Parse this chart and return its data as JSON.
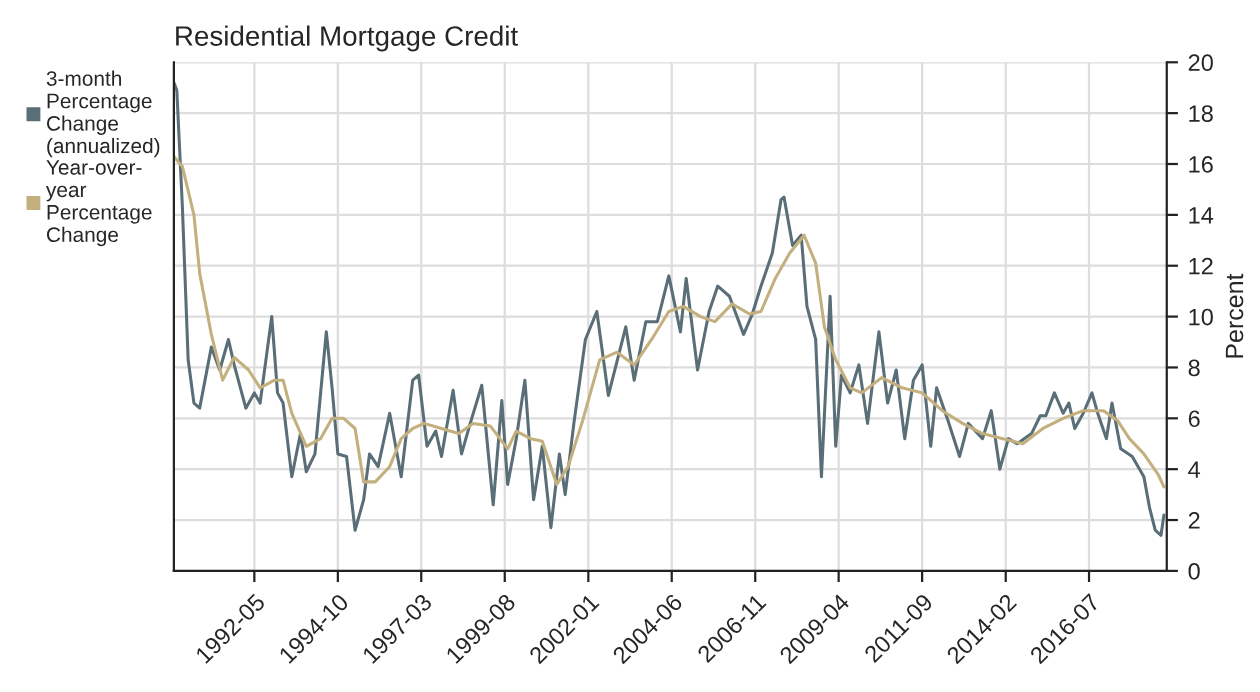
{
  "chart_data": {
    "type": "line",
    "title": "Residential Mortgage Credit",
    "ylabel": "Percent",
    "xlim": [
      "1990-01",
      "2018-10"
    ],
    "xticks": [
      "1992-05",
      "1994-10",
      "1997-03",
      "1999-08",
      "2002-01",
      "2004-06",
      "2006-11",
      "2009-04",
      "2011-09",
      "2014-02",
      "2016-07"
    ],
    "ylim": [
      0,
      20
    ],
    "yticks": [
      0,
      2,
      4,
      6,
      8,
      10,
      12,
      14,
      16,
      18,
      20
    ],
    "grid": true,
    "legend": "left",
    "line_style": "solid",
    "series": [
      {
        "name": "3-month\nPercentage\nChange\n(annualized)",
        "color": "#5a6e78",
        "x": [
          "1990-01",
          "1990-02",
          "1990-04",
          "1990-06",
          "1990-08",
          "1990-10",
          "1991-02",
          "1991-05",
          "1991-08",
          "1991-10",
          "1992-02",
          "1992-05",
          "1992-07",
          "1992-11",
          "1993-01",
          "1993-03",
          "1993-06",
          "1993-09",
          "1993-11",
          "1994-02",
          "1994-06",
          "1994-08",
          "1994-10",
          "1995-01",
          "1995-04",
          "1995-07",
          "1995-09",
          "1995-12",
          "1996-04",
          "1996-08",
          "1996-12",
          "1997-02",
          "1997-05",
          "1997-08",
          "1997-10",
          "1998-02",
          "1998-05",
          "1998-08",
          "1998-12",
          "1999-04",
          "1999-07",
          "1999-09",
          "1999-12",
          "2000-03",
          "2000-06",
          "2000-09",
          "2000-12",
          "2001-03",
          "2001-05",
          "2001-08",
          "2001-12",
          "2002-04",
          "2002-08",
          "2003-02",
          "2003-05",
          "2003-09",
          "2004-01",
          "2004-05",
          "2004-09",
          "2004-11",
          "2005-03",
          "2005-07",
          "2005-10",
          "2006-02",
          "2006-07",
          "2006-10",
          "2007-01",
          "2007-05",
          "2007-08",
          "2007-09",
          "2007-12",
          "2008-03",
          "2008-05",
          "2008-08",
          "2008-10",
          "2009-01",
          "2009-03",
          "2009-05",
          "2009-08",
          "2009-11",
          "2010-02",
          "2010-06",
          "2010-09",
          "2010-12",
          "2011-03",
          "2011-06",
          "2011-09",
          "2011-12",
          "2012-02",
          "2012-06",
          "2012-10",
          "2013-01",
          "2013-06",
          "2013-09",
          "2013-12",
          "2014-03",
          "2014-06",
          "2014-11",
          "2015-02",
          "2015-04",
          "2015-07",
          "2015-10",
          "2015-12",
          "2016-02",
          "2016-05",
          "2016-08",
          "2016-10",
          "2017-01",
          "2017-03",
          "2017-06",
          "2017-10",
          "2018-02",
          "2018-04",
          "2018-06",
          "2018-08",
          "2018-09"
        ],
        "values": [
          19.2,
          18.9,
          14.3,
          8.3,
          6.6,
          6.4,
          8.8,
          7.9,
          9.1,
          8.1,
          6.4,
          7.0,
          6.6,
          10.0,
          7.0,
          6.6,
          3.7,
          5.4,
          3.9,
          4.6,
          9.4,
          7.2,
          4.6,
          4.5,
          1.6,
          2.8,
          4.6,
          4.1,
          6.2,
          3.7,
          7.5,
          7.7,
          4.9,
          5.5,
          4.5,
          7.1,
          4.6,
          5.8,
          7.3,
          2.6,
          6.7,
          3.4,
          5.2,
          7.5,
          2.8,
          4.9,
          1.7,
          4.6,
          3.0,
          5.8,
          9.1,
          10.2,
          6.9,
          9.6,
          7.5,
          9.8,
          9.8,
          11.6,
          9.4,
          11.5,
          7.9,
          10.2,
          11.2,
          10.8,
          9.3,
          10.1,
          11.2,
          12.5,
          14.6,
          14.7,
          12.8,
          13.2,
          10.4,
          9.1,
          3.7,
          10.8,
          4.9,
          7.7,
          7.0,
          8.1,
          5.8,
          9.4,
          6.6,
          7.9,
          5.2,
          7.5,
          8.1,
          4.9,
          7.2,
          5.9,
          4.5,
          5.8,
          5.2,
          6.3,
          4.0,
          5.2,
          5.0,
          5.4,
          6.1,
          6.1,
          7.0,
          6.2,
          6.6,
          5.6,
          6.2,
          7.0,
          6.2,
          5.2,
          6.6,
          4.8,
          4.5,
          3.7,
          2.5,
          1.6,
          1.4,
          2.2
        ]
      },
      {
        "name": "Year-over-\nyear\nPercentage\nChange",
        "color": "#c4b07e",
        "x": [
          "1990-01",
          "1990-04",
          "1990-08",
          "1990-10",
          "1991-02",
          "1991-06",
          "1991-10",
          "1992-03",
          "1992-07",
          "1992-12",
          "1993-03",
          "1993-06",
          "1993-11",
          "1994-04",
          "1994-08",
          "1994-12",
          "1995-04",
          "1995-07",
          "1995-11",
          "1996-04",
          "1996-08",
          "1996-12",
          "1997-04",
          "1997-10",
          "1998-04",
          "1998-09",
          "1999-03",
          "1999-09",
          "1999-12",
          "2000-05",
          "2000-09",
          "2001-02",
          "2001-06",
          "2001-11",
          "2002-05",
          "2002-11",
          "2003-05",
          "2003-11",
          "2004-05",
          "2004-10",
          "2005-04",
          "2005-09",
          "2006-03",
          "2006-09",
          "2007-01",
          "2007-06",
          "2007-11",
          "2008-04",
          "2008-08",
          "2008-11",
          "2009-03",
          "2009-08",
          "2009-12",
          "2010-07",
          "2011-02",
          "2011-09",
          "2012-04",
          "2012-11",
          "2013-06",
          "2014-01",
          "2014-08",
          "2015-03",
          "2015-10",
          "2016-05",
          "2016-12",
          "2017-05",
          "2017-09",
          "2018-02",
          "2018-07",
          "2018-09"
        ],
        "values": [
          16.3,
          15.9,
          14.0,
          11.7,
          9.3,
          7.5,
          8.4,
          7.9,
          7.2,
          7.5,
          7.5,
          6.2,
          4.9,
          5.2,
          6.0,
          6.0,
          5.6,
          3.5,
          3.5,
          4.1,
          5.2,
          5.6,
          5.8,
          5.6,
          5.4,
          5.8,
          5.7,
          4.8,
          5.5,
          5.2,
          5.1,
          3.4,
          4.1,
          5.9,
          8.3,
          8.6,
          8.1,
          9.1,
          10.2,
          10.4,
          10.0,
          9.8,
          10.5,
          10.1,
          10.2,
          11.5,
          12.5,
          13.2,
          12.1,
          9.6,
          8.3,
          7.2,
          7.0,
          7.6,
          7.2,
          7.0,
          6.3,
          5.8,
          5.4,
          5.2,
          5.0,
          5.6,
          6.0,
          6.3,
          6.3,
          5.9,
          5.2,
          4.6,
          3.8,
          3.3
        ]
      }
    ]
  }
}
